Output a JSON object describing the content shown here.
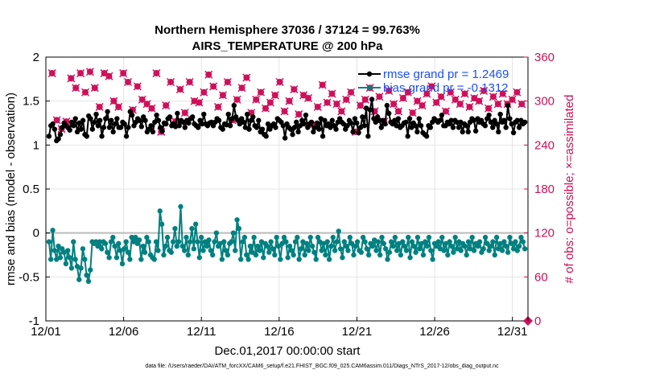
{
  "chart_data": {
    "type": "line",
    "title": "Northern Hemisphere 37036 / 37124 = 99.763%",
    "subtitle": "AIRS_TEMPERATURE @ 200 hPa",
    "xlabel": "Dec.01,2017 00:00:00 start",
    "ylabel": "rmse and bias (model - observation)",
    "ylabel_right": "# of obs: o=possible; ×=assimilated",
    "xlim": [
      0,
      31
    ],
    "ylim": [
      -1,
      2
    ],
    "ylim_right": [
      0,
      360
    ],
    "x_tick_labels": [
      "12/01",
      "12/06",
      "12/11",
      "12/16",
      "12/21",
      "12/26",
      "12/31"
    ],
    "y_tick_labels": [
      "-1",
      "-0.5",
      "0",
      "0.5",
      "1",
      "1.5",
      "2"
    ],
    "y_tick_labels_right": [
      "0",
      "60",
      "120",
      "180",
      "240",
      "300",
      "360"
    ],
    "grid": true,
    "legend_position": "top-right",
    "footnote": "data file: /Users/raeder/DAI/ATM_forcXX/CAM6_setup/f.e21.FHIST_BGC.f09_025.CAM6assim.011/Diags_NTrS_2017-12/obs_diag_output.nc",
    "colors": {
      "rmse": "#000000",
      "bias": "#008080",
      "obs": "#d0105a",
      "zero_line": "#bbbbbb"
    },
    "series": [
      {
        "name": "rmse grand pr = 1.2469",
        "color": "#000000",
        "values": [
          1.1,
          1.22,
          1.24,
          1.18,
          1.05,
          1.07,
          1.12,
          1.2,
          1.25,
          1.22,
          1.2,
          1.17,
          1.26,
          1.22,
          1.3,
          1.15,
          1.25,
          1.18,
          1.28,
          1.12,
          1.1,
          1.33,
          1.3,
          1.18,
          1.26,
          1.35,
          1.22,
          1.28,
          1.1,
          1.2,
          1.3,
          1.38,
          1.2,
          1.28,
          1.15,
          1.24,
          1.3,
          1.2,
          1.2,
          1.26,
          1.24,
          1.1,
          1.2,
          1.38,
          1.34,
          1.22,
          1.26,
          1.3,
          1.28,
          1.21,
          1.32,
          1.28,
          1.15,
          1.18,
          1.22,
          1.15,
          1.26,
          1.34,
          1.28,
          1.2,
          1.16,
          1.25,
          1.24,
          1.3,
          1.32,
          1.22,
          1.24,
          1.21,
          1.36,
          1.22,
          1.28,
          1.26,
          1.2,
          1.28,
          1.25,
          1.3,
          1.32,
          1.24,
          1.22,
          1.2,
          1.28,
          1.24,
          1.35,
          1.24,
          1.22,
          1.25,
          1.26,
          1.22,
          1.26,
          1.3,
          1.28,
          1.2,
          1.18,
          1.24,
          1.23,
          1.35,
          1.22,
          1.3,
          1.45,
          1.32,
          1.28,
          1.24,
          1.3,
          1.26,
          1.2,
          1.35,
          1.18,
          1.28,
          1.32,
          1.22,
          1.2,
          1.28,
          1.15,
          1.18,
          1.12,
          1.1,
          1.24,
          1.18,
          1.22,
          1.24,
          1.2,
          1.3,
          1.28,
          1.26,
          1.22,
          1.08,
          1.24,
          1.2,
          1.18,
          1.12,
          1.2,
          1.26,
          1.15,
          1.22,
          1.28,
          1.24,
          1.34,
          1.2,
          1.24,
          1.26,
          1.15,
          1.2,
          1.25,
          1.18,
          1.3,
          1.1,
          1.28,
          1.22,
          1.24,
          1.2,
          1.28,
          1.22,
          1.18,
          1.26,
          1.3,
          1.26,
          1.24,
          1.18,
          1.22,
          1.28,
          1.25,
          1.15,
          1.3,
          1.25,
          1.14,
          1.2,
          1.32,
          1.22,
          1.42,
          1.1,
          1.4,
          1.52,
          1.3,
          1.26,
          1.32,
          1.28,
          1.2,
          1.28,
          1.24,
          1.45,
          1.36,
          1.26,
          1.24,
          1.28,
          1.22,
          1.3,
          1.2,
          1.22,
          1.25,
          1.26,
          1.1,
          1.3,
          1.2,
          1.25,
          1.22,
          1.15,
          1.3,
          1.22,
          1.14,
          1.12,
          1.1,
          1.22,
          1.2,
          1.26,
          1.3,
          1.28,
          1.26,
          1.28,
          1.34,
          1.22,
          1.22,
          1.26,
          1.24,
          1.28,
          1.2,
          1.28,
          1.26,
          1.2,
          1.26,
          1.15,
          1.24,
          1.22,
          1.15,
          1.26,
          1.3,
          1.28,
          1.16,
          1.3,
          1.26,
          1.28,
          1.24,
          1.22,
          1.3,
          1.34,
          1.26,
          1.2,
          1.28,
          1.24,
          1.15,
          1.35,
          1.26,
          1.28,
          1.2,
          1.45,
          1.3,
          1.24,
          1.14,
          1.26,
          1.28,
          1.2,
          1.28,
          1.24,
          1.26
        ]
      },
      {
        "name": "bias grand pr = -0.1312",
        "color": "#008080",
        "values": [
          -0.1,
          -0.3,
          0.03,
          -0.2,
          -0.3,
          -0.15,
          -0.28,
          -0.18,
          -0.22,
          -0.35,
          -0.2,
          -0.28,
          -0.4,
          -0.1,
          -0.3,
          -0.38,
          -0.53,
          -0.4,
          -0.18,
          -0.3,
          -0.48,
          -0.55,
          -0.42,
          -0.1,
          -0.12,
          -0.1,
          -0.15,
          -0.1,
          -0.18,
          -0.1,
          -0.12,
          -0.22,
          -0.28,
          -0.1,
          -0.05,
          -0.15,
          -0.28,
          -0.12,
          -0.2,
          -0.35,
          -0.18,
          -0.1,
          -0.22,
          -0.3,
          -0.05,
          -0.1,
          -0.05,
          -0.12,
          -0.08,
          -0.3,
          -0.15,
          -0.22,
          -0.05,
          -0.1,
          -0.25,
          -0.28,
          -0.3,
          -0.1,
          -0.2,
          0.25,
          0.1,
          -0.25,
          -0.15,
          -0.05,
          -0.2,
          -0.22,
          -0.1,
          0.05,
          -0.15,
          -0.1,
          0.3,
          -0.15,
          -0.2,
          -0.05,
          -0.25,
          -0.1,
          0.05,
          -0.18,
          0.1,
          -0.1,
          -0.28,
          -0.05,
          -0.2,
          -0.1,
          -0.15,
          -0.08,
          -0.2,
          -0.25,
          -0.1,
          0.0,
          -0.15,
          -0.12,
          -0.3,
          -0.1,
          -0.2,
          -0.25,
          -0.12,
          -0.1,
          0.0,
          -0.2,
          0.15,
          0.05,
          -0.3,
          -0.1,
          -0.05,
          -0.25,
          -0.3,
          -0.15,
          -0.22,
          -0.05,
          -0.25,
          -0.15,
          -0.2,
          -0.1,
          -0.28,
          -0.12,
          -0.15,
          -0.22,
          -0.1,
          -0.18,
          -0.25,
          -0.05,
          -0.15,
          -0.3,
          -0.12,
          -0.05,
          -0.1,
          -0.28,
          -0.15,
          -0.2,
          -0.25,
          -0.1,
          -0.05,
          -0.3,
          -0.18,
          -0.1,
          -0.25,
          -0.12,
          -0.2,
          -0.05,
          -0.15,
          -0.22,
          -0.3,
          -0.05,
          -0.1,
          -0.2,
          -0.12,
          -0.25,
          -0.1,
          -0.3,
          -0.15,
          -0.05,
          -0.2,
          -0.1,
          0.02,
          -0.18,
          -0.28,
          -0.1,
          -0.15,
          -0.2,
          -0.05,
          -0.12,
          -0.25,
          -0.15,
          -0.1,
          -0.2,
          -0.22,
          -0.05,
          -0.1,
          -0.18,
          -0.25,
          -0.12,
          -0.15,
          -0.08,
          -0.2,
          -0.1,
          -0.25,
          -0.05,
          -0.12,
          -0.18,
          -0.3,
          -0.22,
          -0.1,
          -0.15,
          -0.05,
          -0.2,
          -0.12,
          -0.25,
          -0.1,
          -0.15,
          -0.2,
          -0.05,
          -0.28,
          -0.1,
          -0.15,
          -0.22,
          -0.05,
          -0.18,
          -0.12,
          -0.25,
          -0.1,
          -0.15,
          -0.05,
          -0.2,
          -0.3,
          -0.12,
          -0.15,
          -0.1,
          -0.18,
          -0.05,
          -0.2,
          -0.12,
          -0.25,
          -0.1,
          -0.15,
          -0.22,
          -0.05,
          -0.18,
          -0.1,
          -0.2,
          -0.12,
          -0.15,
          -0.25,
          -0.1,
          -0.18,
          -0.05,
          -0.2,
          -0.12,
          -0.15,
          -0.1,
          -0.22,
          -0.18,
          -0.05,
          -0.12,
          -0.2,
          -0.15,
          -0.1,
          -0.25,
          -0.05,
          -0.18,
          -0.12,
          -0.2,
          -0.1,
          -0.15,
          -0.22,
          -0.05,
          -0.12,
          -0.18,
          -0.1,
          -0.2,
          -0.15,
          -0.05,
          -0.1,
          -0.18
        ]
      },
      {
        "name": "obs possible",
        "color": "#d0105a",
        "axis": "right",
        "values": [
          338,
          274,
          262,
          272,
          331,
          318,
          338,
          312,
          340,
          318,
          292,
          338,
          334,
          300,
          292,
          338,
          326,
          288,
          320,
          302,
          296,
          290,
          338,
          258,
          294,
          326,
          272,
          316,
          284,
          326,
          300,
          298,
          312,
          336,
          320,
          292,
          308,
          326,
          274,
          302,
          318,
          332,
          284,
          302,
          312,
          290,
          298,
          308,
          326,
          286,
          300,
          316,
          282,
          308,
          304,
          268,
          292,
          322,
          298,
          310,
          296,
          286,
          302,
          312,
          258,
          294,
          302,
          318,
          286,
          306,
          272,
          314,
          296,
          286,
          304,
          312,
          284,
          300,
          294,
          310,
          320,
          298,
          306,
          286,
          312,
          302,
          296,
          310,
          292,
          304,
          300,
          314,
          290,
          306,
          296,
          310,
          296,
          302,
          312,
          296
        ]
      }
    ]
  }
}
